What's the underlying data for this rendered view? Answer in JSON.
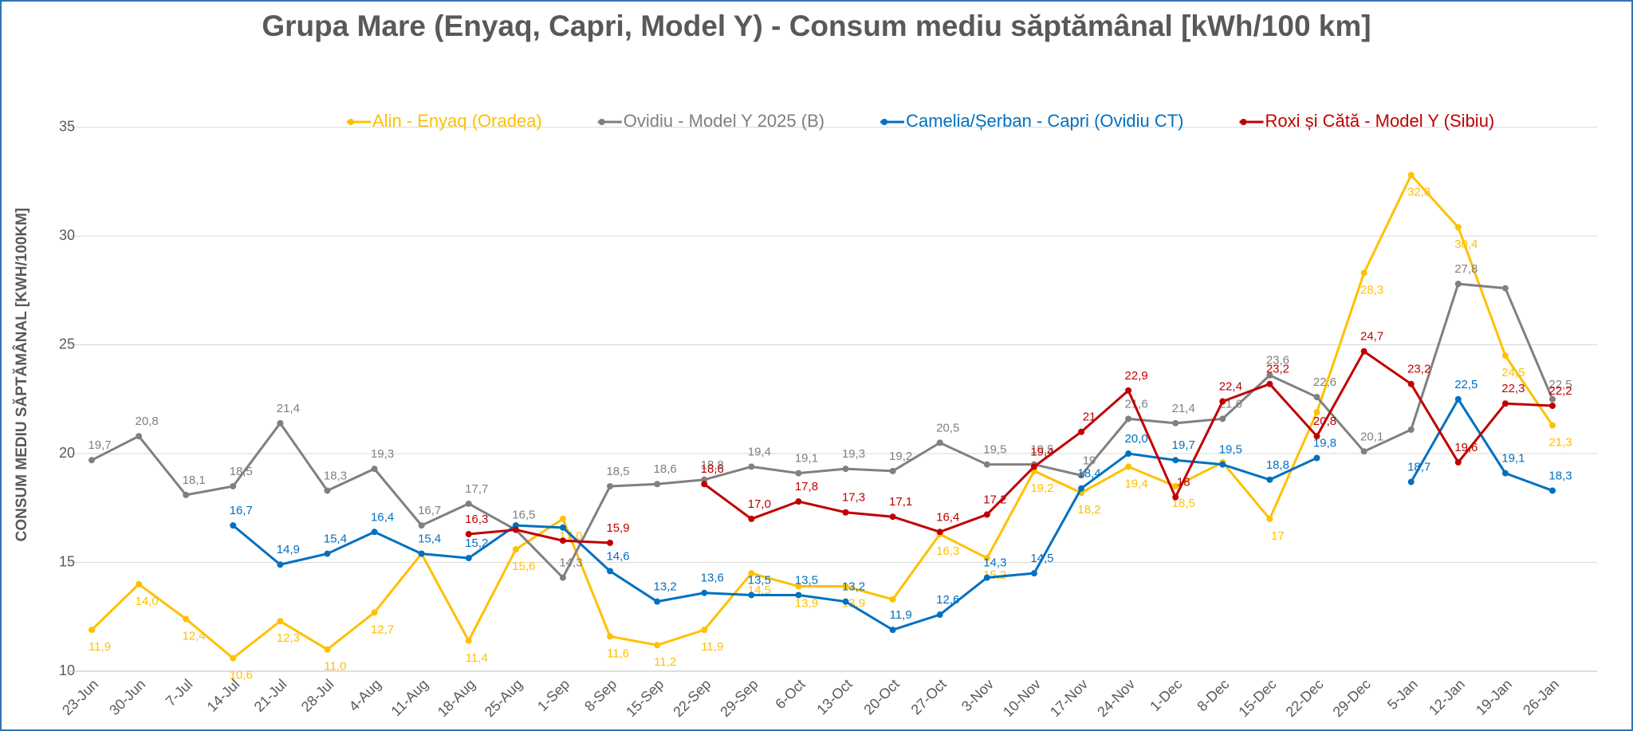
{
  "chart_data": {
    "type": "line",
    "title": "Grupa Mare (Enyaq, Capri, Model Y) - Consum mediu săptămânal [kWh/100 km]",
    "y_label": "CONSUM MEDIU SĂPTĂMÂNAL [KWH/100KM]",
    "categories": [
      "23-Jun",
      "30-Jun",
      "7-Jul",
      "14-Jul",
      "21-Jul",
      "28-Jul",
      "4-Aug",
      "11-Aug",
      "18-Aug",
      "25-Aug",
      "1-Sep",
      "8-Sep",
      "15-Sep",
      "22-Sep",
      "29-Sep",
      "6-Oct",
      "13-Oct",
      "20-Oct",
      "27-Oct",
      "3-Nov",
      "10-Nov",
      "17-Nov",
      "24-Nov",
      "1-Dec",
      "8-Dec",
      "15-Dec",
      "22-Dec",
      "29-Dec",
      "5-Jan",
      "12-Jan",
      "19-Jan",
      "26-Jan"
    ],
    "ylim": [
      10,
      37
    ],
    "yticks": [
      10,
      15,
      20,
      25,
      30,
      35
    ],
    "grid": true,
    "legend": "top",
    "series": [
      {
        "name": "Alin - Enyaq (Oradea)",
        "color": "#FFC000",
        "values": [
          11.9,
          14.0,
          12.4,
          10.6,
          12.3,
          11.0,
          12.7,
          15.4,
          11.4,
          15.6,
          17.0,
          11.6,
          11.2,
          11.9,
          14.5,
          13.9,
          13.9,
          13.3,
          16.3,
          15.2,
          19.2,
          18.2,
          19.4,
          18.5,
          19.6,
          17,
          21.9,
          28.3,
          32.8,
          30.4,
          24.5,
          21.3
        ],
        "value_labels": [
          "11,9",
          "14,0",
          "12,4",
          "10,6",
          "12,3",
          "11,0",
          "12,7",
          null,
          "11,4",
          "15,6",
          "17,0",
          "11,6",
          "11,2",
          "11,9",
          "14,5",
          "13,9",
          "13,9",
          null,
          "16,3",
          "15,2",
          "19,2",
          "18,2",
          "19,4",
          "18,5",
          null,
          "17",
          null,
          "28,3",
          "32,8",
          "30,4",
          "24,5",
          "21,3"
        ]
      },
      {
        "name": "Ovidiu - Model Y 2025 (B)",
        "color": "#808080",
        "values": [
          19.7,
          20.8,
          18.1,
          18.5,
          21.4,
          18.3,
          19.3,
          16.7,
          17.7,
          16.5,
          14.3,
          18.5,
          18.6,
          18.8,
          19.4,
          19.1,
          19.3,
          19.2,
          20.5,
          19.5,
          19.5,
          19,
          21.6,
          21.4,
          21.6,
          23.6,
          22.6,
          20.1,
          21.1,
          27.8,
          27.6,
          22.5
        ],
        "value_labels": [
          "19,7",
          "20,8",
          "18,1",
          "18,5",
          "21,4",
          "18,3",
          "19,3",
          "16,7",
          "17,7",
          "16,5",
          "14,3",
          "18,5",
          "18,6",
          "18,8",
          "19,4",
          "19,1",
          "19,3",
          "19,2",
          "20,5",
          "19,5",
          "19,5",
          "19",
          "21,6",
          "21,4",
          "21,6",
          "23,6",
          "22,6",
          "20,1",
          null,
          "27,8",
          null,
          "22,5"
        ]
      },
      {
        "name": "Camelia/Șerban - Capri (Ovidiu CT)",
        "color": "#0070C0",
        "values": [
          null,
          null,
          null,
          16.7,
          14.9,
          15.4,
          16.4,
          15.4,
          15.2,
          16.7,
          16.6,
          14.6,
          13.2,
          13.6,
          13.5,
          13.5,
          13.2,
          11.9,
          12.6,
          14.3,
          14.5,
          18.4,
          20.0,
          19.7,
          19.5,
          18.8,
          19.8,
          null,
          18.7,
          22.5,
          19.1,
          18.3
        ],
        "value_labels": [
          null,
          null,
          null,
          "16,7",
          "14,9",
          "15,4",
          "16,4",
          "15,4",
          "15,2",
          null,
          null,
          "14,6",
          "13,2",
          "13,6",
          "13,5",
          "13,5",
          "13,2",
          "11,9",
          "12,6",
          "14,3",
          "14,5",
          "18,4",
          "20,0",
          "19,7",
          "19,5",
          "18,8",
          "19,8",
          null,
          "18,7",
          "22,5",
          "19,1",
          "18,3"
        ]
      },
      {
        "name": "Roxi și Cătă - Model Y (Sibiu)",
        "color": "#C00000",
        "values": [
          null,
          null,
          null,
          null,
          null,
          null,
          null,
          null,
          16.3,
          16.5,
          16.0,
          15.9,
          null,
          18.6,
          17.0,
          17.8,
          17.3,
          17.1,
          16.4,
          17.2,
          19.4,
          21,
          22.9,
          18,
          22.4,
          23.2,
          20.8,
          24.7,
          23.2,
          19.6,
          22.3,
          22.2
        ],
        "value_labels": [
          null,
          null,
          null,
          null,
          null,
          null,
          null,
          null,
          "16,3",
          null,
          null,
          "15,9",
          null,
          "18,6",
          "17,0",
          "17,8",
          "17,3",
          "17,1",
          "16,4",
          "17,2",
          "19,4",
          "21",
          "22,9",
          "18",
          "22,4",
          "23,2",
          "20,8",
          "24,7",
          "23,2",
          "19,6",
          "22,3",
          "22,2"
        ]
      }
    ]
  }
}
